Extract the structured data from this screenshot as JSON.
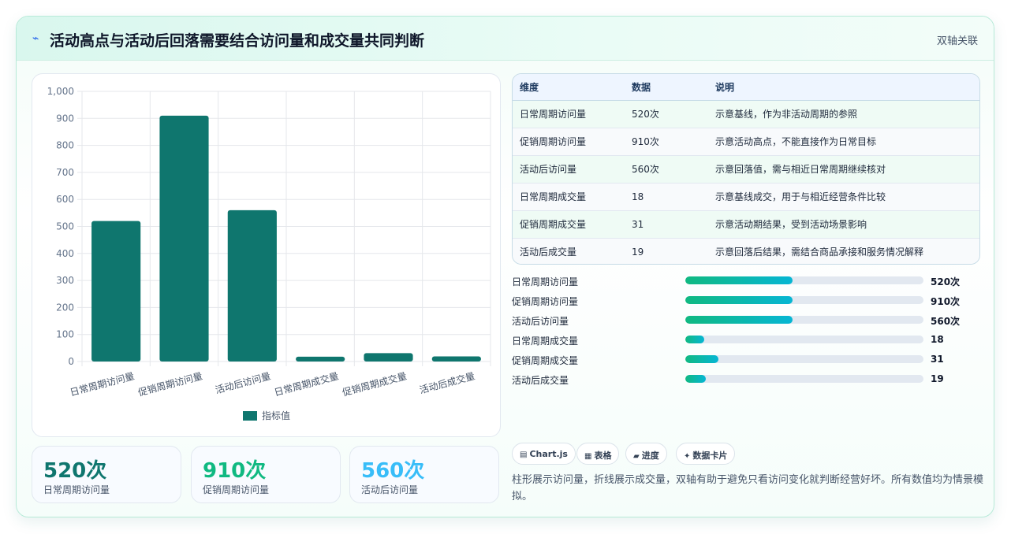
{
  "header": {
    "icon": "pulse-icon",
    "title": "活动高点与活动后回落需要结合访问量和成交量共同判断",
    "tag": "双轴关联"
  },
  "chart_data": {
    "type": "bar",
    "categories": [
      "日常周期访问量",
      "促销周期访问量",
      "活动后访问量",
      "日常周期成交量",
      "促销周期成交量",
      "活动后成交量"
    ],
    "series": [
      {
        "name": "指标值",
        "values": [
          520,
          910,
          560,
          18,
          31,
          19
        ]
      }
    ],
    "ylim": [
      0,
      1000
    ],
    "yticks": [
      "0",
      "100",
      "200",
      "300",
      "400",
      "500",
      "600",
      "700",
      "800",
      "900",
      "1,000"
    ],
    "grid": true,
    "legend": "bottom",
    "color": "#0f766e"
  },
  "kpis": [
    {
      "value": "520次",
      "label": "日常周期访问量",
      "color": "#0f766e"
    },
    {
      "value": "910次",
      "label": "促销周期访问量",
      "color": "#10b981"
    },
    {
      "value": "560次",
      "label": "活动后访问量",
      "color": "#38bdf8"
    }
  ],
  "table": {
    "headers": [
      "维度",
      "数据",
      "说明"
    ],
    "rows": [
      [
        "日常周期访问量",
        "520次",
        "示意基线，作为非活动周期的参照"
      ],
      [
        "促销周期访问量",
        "910次",
        "示意活动高点，不能直接作为日常目标"
      ],
      [
        "活动后访问量",
        "560次",
        "示意回落值，需与相近日常周期继续核对"
      ],
      [
        "日常周期成交量",
        "18",
        "示意基线成交，用于与相近经营条件比较"
      ],
      [
        "促销周期成交量",
        "31",
        "示意活动期结果，受到活动场景影响"
      ],
      [
        "活动后成交量",
        "19",
        "示意回落后结果，需结合商品承接和服务情况解释"
      ]
    ]
  },
  "progress": [
    {
      "label": "日常周期访问量",
      "value": "520次",
      "fraction": 0.45
    },
    {
      "label": "促销周期访问量",
      "value": "910次",
      "fraction": 0.45
    },
    {
      "label": "活动后访问量",
      "value": "560次",
      "fraction": 0.45
    },
    {
      "label": "日常周期成交量",
      "value": "18",
      "fraction": 0.08
    },
    {
      "label": "促销周期成交量",
      "value": "31",
      "fraction": 0.14
    },
    {
      "label": "活动后成交量",
      "value": "19",
      "fraction": 0.085
    }
  ],
  "chips": [
    {
      "icon": "chart-icon",
      "glyph": "▤",
      "label": "Chart.js"
    },
    {
      "icon": "table-icon",
      "glyph": "▦",
      "label": "表格"
    },
    {
      "icon": "progress-icon",
      "glyph": "▰",
      "label": "进度"
    },
    {
      "icon": "sparkle-icon",
      "glyph": "✦",
      "label": "数据卡片"
    }
  ],
  "note": "柱形展示访问量，折线展示成交量，双轴有助于避免只看访问变化就判断经营好坏。所有数值均为情景模拟。"
}
